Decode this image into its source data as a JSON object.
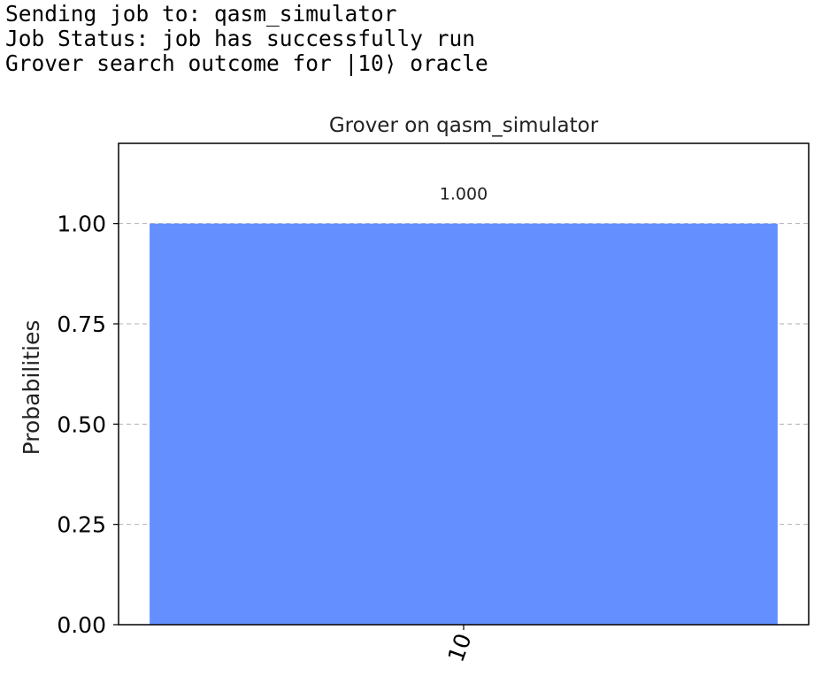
{
  "console": {
    "lines": [
      "Sending job to: qasm_simulator",
      "Job Status: job has successfully run",
      "Grover search outcome for |10⟩ oracle"
    ]
  },
  "chart_data": {
    "type": "bar",
    "title": "Grover on qasm_simulator",
    "xlabel": "",
    "ylabel": "Probabilities",
    "categories": [
      "10"
    ],
    "values": [
      1.0
    ],
    "value_labels": [
      "1.000"
    ],
    "ylim": [
      0,
      1.2
    ],
    "yticks": [
      0,
      0.25,
      0.5,
      0.75,
      1.0
    ],
    "ytick_labels": [
      "0.00",
      "0.25",
      "0.50",
      "0.75",
      "1.00"
    ],
    "grid": "horizontal dashed",
    "bar_color": "#648fff",
    "grid_color": "#b0b0b0",
    "axis_color": "#000000"
  }
}
